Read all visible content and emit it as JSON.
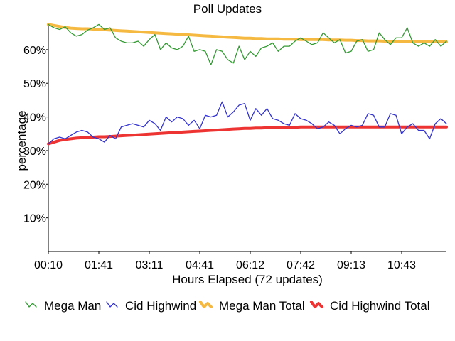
{
  "chart_data": {
    "type": "line",
    "title": "Poll Updates",
    "xlabel": "Hours Elapsed (72 updates)",
    "ylabel": "percentage",
    "x_tick_labels": [
      "00:10",
      "01:41",
      "03:11",
      "04:41",
      "06:12",
      "07:42",
      "09:13",
      "10:43"
    ],
    "y_tick_labels": [
      "10%",
      "20%",
      "30%",
      "40%",
      "50%",
      "60%"
    ],
    "y_tick_values": [
      10,
      20,
      30,
      40,
      50,
      60
    ],
    "ylim": [
      0,
      68
    ],
    "n_updates": 72,
    "grid": false,
    "legend_position": "bottom",
    "series": [
      {
        "name": "Mega Man",
        "color": "#339933",
        "style": "thin",
        "values": [
          67.5,
          66.5,
          66,
          66.8,
          65,
          64,
          64.5,
          65.8,
          66.5,
          67.5,
          66,
          66.5,
          63.5,
          62.5,
          62,
          62,
          62.5,
          61,
          63,
          64.5,
          60,
          62,
          60.5,
          60,
          61,
          64,
          59.5,
          60,
          59.5,
          55.5,
          60,
          59.5,
          57,
          56,
          61,
          57,
          59.5,
          58,
          60.5,
          61,
          62,
          59.5,
          61,
          61,
          62.5,
          63.5,
          62.5,
          61.5,
          62,
          65,
          63.5,
          62,
          63,
          59,
          59.5,
          62.5,
          63,
          59.5,
          60,
          65,
          63,
          61.5,
          63.5,
          63.5,
          66.5,
          62,
          61,
          62,
          61,
          63,
          61,
          62.5
        ]
      },
      {
        "name": "Cid Highwind",
        "color": "#3333cc",
        "style": "thin",
        "values": [
          32,
          33.5,
          34,
          33.5,
          34.5,
          35.5,
          36,
          35.5,
          34,
          33.5,
          32.5,
          34.5,
          33.5,
          37,
          37.5,
          38,
          37.5,
          37,
          39,
          38,
          36,
          40,
          38.5,
          40,
          39.5,
          37.5,
          39,
          36.5,
          40.5,
          40,
          40.5,
          44.5,
          40,
          41.5,
          43.5,
          44,
          39,
          42.5,
          40.5,
          42.5,
          39.5,
          39,
          38,
          37.5,
          41,
          39.5,
          39,
          38,
          36.5,
          37,
          38.5,
          37.5,
          35,
          36.5,
          37.5,
          37,
          37.5,
          41,
          40.5,
          37,
          37,
          41,
          40.5,
          35,
          37,
          38,
          36,
          36,
          33.5,
          38,
          39.5,
          38
        ]
      },
      {
        "name": "Mega Man Total",
        "color": "#f5b942",
        "style": "thick",
        "values": [
          67.5,
          67.2,
          66.9,
          66.6,
          66.4,
          66.3,
          66.2,
          66.2,
          66.1,
          66,
          65.9,
          65.8,
          65.7,
          65.6,
          65.5,
          65.4,
          65.3,
          65.2,
          65.1,
          65,
          64.9,
          64.8,
          64.7,
          64.6,
          64.5,
          64.4,
          64.3,
          64.2,
          64.1,
          64,
          63.9,
          63.8,
          63.7,
          63.6,
          63.5,
          63.4,
          63.4,
          63.3,
          63.3,
          63.2,
          63.2,
          63.2,
          63.1,
          63.1,
          63.1,
          63,
          63,
          63,
          63,
          63,
          62.9,
          62.9,
          62.9,
          62.8,
          62.8,
          62.7,
          62.7,
          62.6,
          62.6,
          62.6,
          62.5,
          62.5,
          62.5,
          62.4,
          62.4,
          62.4,
          62.3,
          62.3,
          62.3,
          62.3,
          62.3,
          62.3
        ]
      },
      {
        "name": "Cid Highwind Total",
        "color": "#ee3333",
        "style": "thick",
        "values": [
          32,
          32.5,
          33,
          33.3,
          33.5,
          33.7,
          33.8,
          33.9,
          34,
          34.1,
          34.1,
          34.2,
          34.3,
          34.4,
          34.5,
          34.6,
          34.7,
          34.8,
          34.9,
          35,
          35.1,
          35.2,
          35.3,
          35.4,
          35.5,
          35.6,
          35.7,
          35.8,
          35.9,
          36,
          36.1,
          36.2,
          36.3,
          36.4,
          36.5,
          36.6,
          36.6,
          36.7,
          36.7,
          36.8,
          36.8,
          36.8,
          36.9,
          36.9,
          36.9,
          37,
          37,
          37,
          37,
          37,
          37,
          37,
          37,
          37,
          37,
          37,
          37,
          37,
          37,
          37,
          37,
          37,
          37,
          37,
          37,
          37,
          37,
          37,
          37,
          37,
          37,
          37
        ]
      }
    ]
  }
}
